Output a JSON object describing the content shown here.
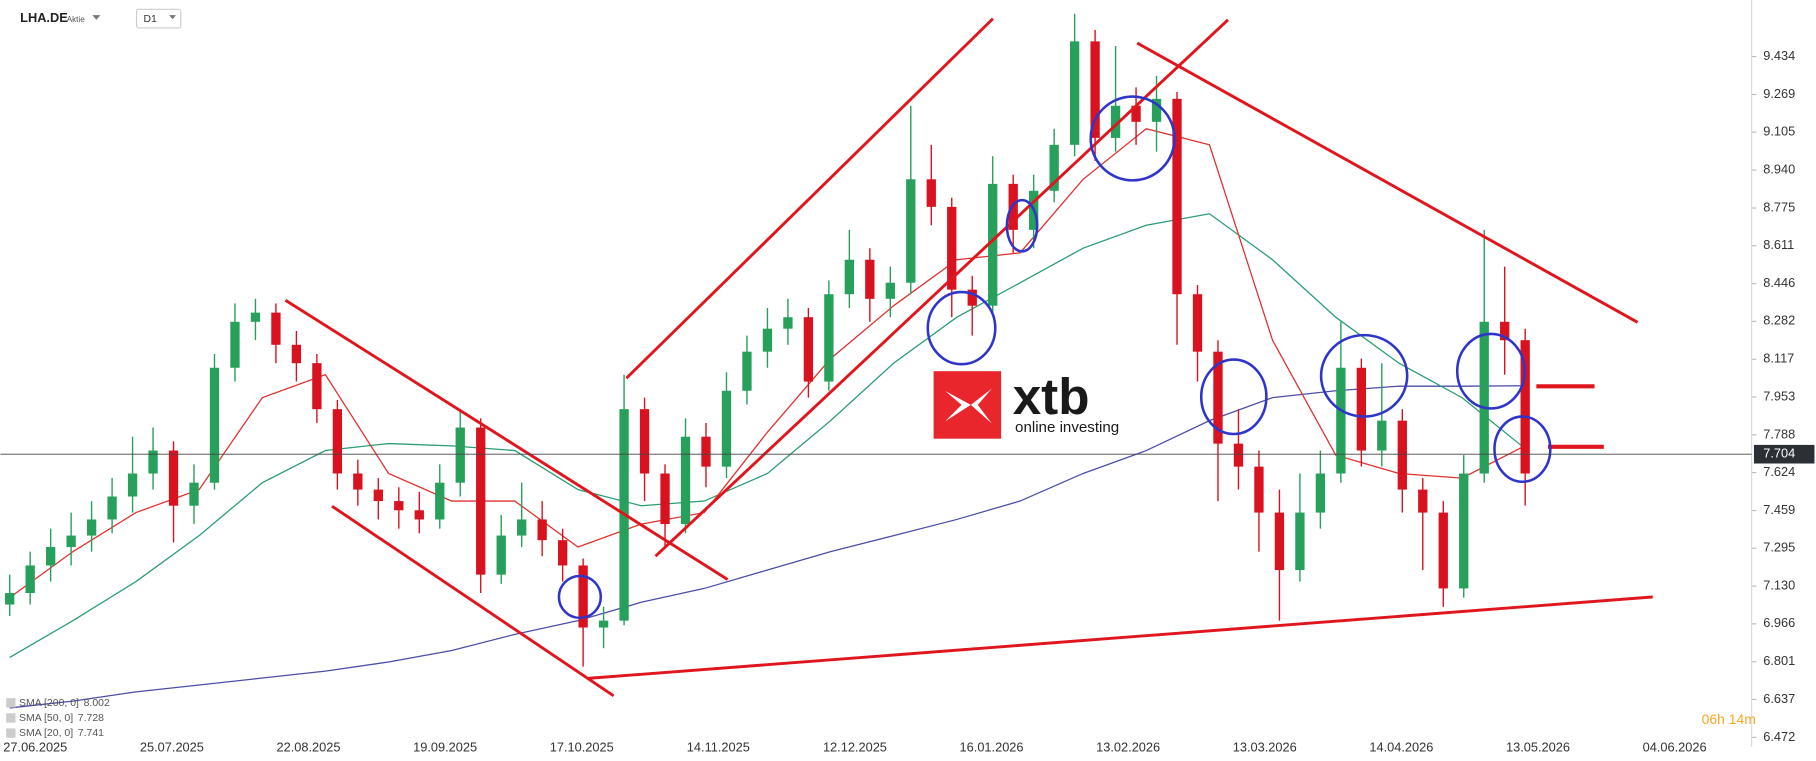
{
  "chart_data": {
    "type": "candlestick",
    "symbol": "LHA.DE",
    "instrument_type": "Aktie",
    "timeframe": "D1",
    "up_color": "#26a05a",
    "down_color": "#d9121f",
    "open": [
      7.05,
      7.1,
      7.22,
      7.3,
      7.35,
      7.42,
      7.52,
      7.62,
      7.72,
      7.48,
      7.58,
      8.08,
      8.28,
      8.32,
      8.18,
      8.1,
      7.9,
      7.62,
      7.55,
      7.5,
      7.46,
      7.42,
      7.58,
      7.82,
      7.18,
      7.35,
      7.42,
      7.33,
      7.22,
      6.95,
      6.98,
      7.9,
      7.62,
      7.4,
      7.78,
      7.65,
      7.98,
      8.15,
      8.25,
      8.3,
      8.02,
      8.4,
      8.55,
      8.38,
      8.45,
      8.9,
      8.78,
      8.42,
      8.35,
      8.88,
      8.68,
      8.85,
      9.05,
      9.5,
      9.08,
      9.22,
      9.15,
      9.25,
      8.4,
      8.15,
      7.75,
      7.65,
      7.45,
      7.2,
      7.45,
      7.62,
      8.08,
      7.72,
      7.85,
      7.55,
      7.45,
      7.12,
      7.62,
      8.28,
      8.2
    ],
    "high": [
      7.18,
      7.28,
      7.38,
      7.45,
      7.5,
      7.6,
      7.78,
      7.82,
      7.76,
      7.66,
      8.14,
      8.36,
      8.38,
      8.36,
      8.24,
      8.14,
      7.94,
      7.68,
      7.6,
      7.56,
      7.54,
      7.66,
      7.9,
      7.86,
      7.44,
      7.58,
      7.5,
      7.38,
      7.25,
      7.04,
      8.05,
      7.95,
      7.66,
      7.86,
      7.84,
      8.06,
      8.22,
      8.34,
      8.38,
      8.34,
      8.46,
      8.68,
      8.6,
      8.52,
      9.22,
      9.05,
      8.82,
      8.48,
      9.0,
      8.92,
      8.92,
      9.12,
      9.62,
      9.55,
      9.48,
      9.3,
      9.35,
      9.28,
      8.44,
      8.2,
      7.9,
      7.72,
      7.55,
      7.62,
      7.72,
      8.28,
      8.12,
      8.1,
      7.9,
      7.6,
      7.5,
      7.7,
      8.68,
      8.52,
      8.25
    ],
    "low": [
      7.0,
      7.05,
      7.15,
      7.22,
      7.28,
      7.36,
      7.45,
      7.55,
      7.32,
      7.4,
      7.55,
      8.02,
      8.2,
      8.1,
      8.02,
      7.84,
      7.55,
      7.48,
      7.42,
      7.38,
      7.36,
      7.38,
      7.52,
      7.1,
      7.14,
      7.3,
      7.26,
      7.15,
      6.78,
      6.86,
      6.96,
      7.5,
      7.3,
      7.36,
      7.56,
      7.6,
      7.92,
      8.08,
      8.18,
      7.95,
      7.98,
      8.34,
      8.28,
      8.3,
      8.4,
      8.7,
      8.3,
      8.22,
      8.32,
      8.58,
      8.6,
      8.8,
      9.0,
      8.98,
      9.02,
      9.05,
      9.02,
      8.18,
      8.02,
      7.5,
      7.55,
      7.28,
      6.98,
      7.15,
      7.38,
      7.58,
      7.65,
      7.65,
      7.45,
      7.2,
      7.04,
      7.08,
      7.58,
      8.05,
      7.48
    ],
    "close": [
      7.1,
      7.22,
      7.3,
      7.35,
      7.42,
      7.52,
      7.62,
      7.72,
      7.48,
      7.58,
      8.08,
      8.28,
      8.32,
      8.18,
      8.1,
      7.9,
      7.62,
      7.55,
      7.5,
      7.46,
      7.42,
      7.58,
      7.82,
      7.18,
      7.35,
      7.42,
      7.33,
      7.22,
      6.95,
      6.98,
      7.9,
      7.62,
      7.4,
      7.78,
      7.65,
      7.98,
      8.15,
      8.25,
      8.3,
      8.02,
      8.4,
      8.55,
      8.38,
      8.45,
      8.9,
      8.78,
      8.42,
      8.35,
      8.88,
      8.68,
      8.85,
      9.05,
      9.5,
      9.08,
      9.22,
      9.15,
      9.25,
      8.4,
      8.15,
      7.75,
      7.65,
      7.45,
      7.2,
      7.45,
      7.62,
      8.08,
      7.72,
      7.85,
      7.55,
      7.45,
      7.12,
      7.62,
      8.28,
      8.2,
      7.62
    ],
    "indicators": [
      {
        "name": "SMA [200, 0]",
        "value": 8.002,
        "color": "#4b4fa8",
        "values": [
          6.6,
          6.63,
          6.67,
          6.7,
          6.73,
          6.76,
          6.8,
          6.85,
          6.92,
          6.98,
          7.06,
          7.12,
          7.2,
          7.28,
          7.35,
          7.42,
          7.5,
          7.62,
          7.72,
          7.85,
          7.95,
          7.98,
          8.0,
          8.0,
          8.002
        ]
      },
      {
        "name": "SMA [50, 0]",
        "value": 7.728,
        "color": "#2a9d70",
        "values": [
          6.82,
          6.98,
          7.15,
          7.35,
          7.58,
          7.72,
          7.75,
          7.74,
          7.72,
          7.55,
          7.48,
          7.5,
          7.62,
          7.85,
          8.1,
          8.3,
          8.45,
          8.6,
          8.7,
          8.75,
          8.55,
          8.3,
          8.1,
          7.95,
          7.728
        ]
      },
      {
        "name": "SMA [20, 0]",
        "value": 7.741,
        "color": "#e03030",
        "values": [
          7.08,
          7.28,
          7.45,
          7.55,
          7.95,
          8.05,
          7.62,
          7.5,
          7.5,
          7.3,
          7.4,
          7.45,
          7.8,
          8.12,
          8.35,
          8.55,
          8.58,
          8.9,
          9.12,
          9.05,
          8.2,
          7.7,
          7.62,
          7.6,
          7.741
        ]
      }
    ],
    "last_price": 7.704,
    "ylim": [
      6.43,
      9.68
    ],
    "yticks": [
      9.434,
      9.269,
      9.105,
      {
        "value": 8.94,
        "label": "8.940"
      },
      8.775,
      8.611,
      8.446,
      8.282,
      8.117,
      7.953,
      7.788,
      7.624,
      7.459,
      7.295,
      {
        "value": 7.13,
        "label": "7.130"
      },
      6.966,
      6.801,
      6.637,
      6.472
    ],
    "xticks": [
      "27.06.2025",
      "25.07.2025",
      "22.08.2025",
      "19.09.2025",
      "17.10.2025",
      "14.11.2025",
      "12.12.2025",
      "16.01.2026",
      "13.02.2026",
      "13.03.2026",
      "14.04.2026",
      "13.05.2026",
      "04.06.2026"
    ],
    "countdown": "06h 14m",
    "logo": {
      "brand": "xtb",
      "tagline": "online investing"
    }
  }
}
